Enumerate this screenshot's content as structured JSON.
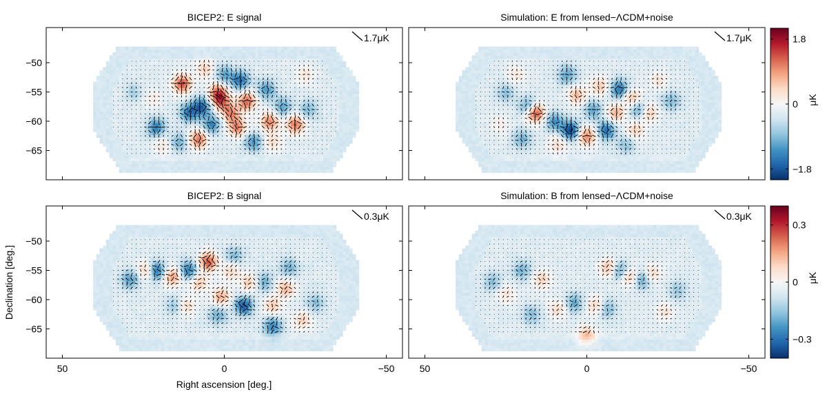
{
  "chart_data": {
    "type": "heatmap",
    "figure": {
      "xlabel": "Right ascension [deg.]",
      "ylabel": "Declination [deg.]"
    },
    "x_axis": {
      "range": [
        55,
        -55
      ],
      "ticks": [
        50,
        0,
        -50
      ],
      "tick_labels": [
        "50",
        "0",
        "−50"
      ]
    },
    "y_axis": {
      "range": [
        -70,
        -44
      ],
      "ticks": [
        -50,
        -55,
        -60,
        -65
      ],
      "tick_labels": [
        "−50",
        "−55",
        "−60",
        "−65"
      ]
    },
    "panels": [
      {
        "title": "BICEP2: E signal",
        "polarization_mode": "E",
        "scale_reference": "1.7μK",
        "hotspots": [
          {
            "ra": 13,
            "dec": -53.5,
            "amp": 1.6
          },
          {
            "ra": 6,
            "dec": -51.0,
            "amp": 0.7
          },
          {
            "ra": 2,
            "dec": -55.0,
            "amp": 1.4
          },
          {
            "ra": 1,
            "dec": -56.5,
            "amp": 1.3
          },
          {
            "ra": -7,
            "dec": -56.5,
            "amp": 1.5
          },
          {
            "ra": -2,
            "dec": -58.5,
            "amp": 1.2
          },
          {
            "ra": -4,
            "dec": -61.0,
            "amp": 1.3
          },
          {
            "ra": -14,
            "dec": -60.0,
            "amp": 1.3
          },
          {
            "ra": -22,
            "dec": -60.5,
            "amp": 1.4
          },
          {
            "ra": 8,
            "dec": -63.0,
            "amp": 1.4
          },
          {
            "ra": -15,
            "dec": -63.5,
            "amp": 0.6
          },
          {
            "ra": 19,
            "dec": -64.0,
            "amp": 0.5
          },
          {
            "ra": 22,
            "dec": -56.0,
            "amp": 0.4
          },
          {
            "ra": -25,
            "dec": -52.0,
            "amp": 0.5
          },
          {
            "ra": 7,
            "dec": -57.5,
            "amp": -1.5
          },
          {
            "ra": -5,
            "dec": -53.0,
            "amp": -1.3
          },
          {
            "ra": 4,
            "dec": -60.5,
            "amp": -1.1
          },
          {
            "ra": 11,
            "dec": -58.5,
            "amp": -1.2
          },
          {
            "ra": -13,
            "dec": -54.5,
            "amp": -1.0
          },
          {
            "ra": -18,
            "dec": -57.5,
            "amp": -0.9
          },
          {
            "ra": 21,
            "dec": -61.0,
            "amp": -1.2
          },
          {
            "ra": -9,
            "dec": -63.5,
            "amp": -1.0
          },
          {
            "ra": 14,
            "dec": -63.5,
            "amp": -0.8
          },
          {
            "ra": 0,
            "dec": -52.0,
            "amp": -0.9
          },
          {
            "ra": -26,
            "dec": -58.0,
            "amp": -0.7
          },
          {
            "ra": 28,
            "dec": -55.0,
            "amp": -0.4
          }
        ]
      },
      {
        "title": "Simulation: E from lensed−ΛCDM+noise",
        "polarization_mode": "E",
        "scale_reference": "1.7μK",
        "hotspots": [
          {
            "ra": 16,
            "dec": -58.5,
            "amp": 1.9
          },
          {
            "ra": 0,
            "dec": -62.5,
            "amp": 1.3
          },
          {
            "ra": 3,
            "dec": -55.5,
            "amp": 0.9
          },
          {
            "ra": -9,
            "dec": -58.5,
            "amp": 1.0
          },
          {
            "ra": -4,
            "dec": -54.0,
            "amp": 0.8
          },
          {
            "ra": -14,
            "dec": -56.0,
            "amp": 0.9
          },
          {
            "ra": -19,
            "dec": -58.5,
            "amp": 0.9
          },
          {
            "ra": -15,
            "dec": -61.5,
            "amp": 0.7
          },
          {
            "ra": 22,
            "dec": -52.0,
            "amp": 0.5
          },
          {
            "ra": 9,
            "dec": -64.0,
            "amp": 0.6
          },
          {
            "ra": -22,
            "dec": -53.0,
            "amp": 0.5
          },
          {
            "ra": 27,
            "dec": -60.5,
            "amp": 0.4
          },
          {
            "ra": 5,
            "dec": -61.5,
            "amp": -1.7
          },
          {
            "ra": -10,
            "dec": -54.5,
            "amp": -1.3
          },
          {
            "ra": -6,
            "dec": -61.5,
            "amp": -1.3
          },
          {
            "ra": 18,
            "dec": -57.5,
            "amp": -1.1
          },
          {
            "ra": -16,
            "dec": -58.0,
            "amp": -1.0
          },
          {
            "ra": 10,
            "dec": -60.0,
            "amp": -1.0
          },
          {
            "ra": 6,
            "dec": -52.0,
            "amp": -0.9
          },
          {
            "ra": 20,
            "dec": -63.0,
            "amp": -0.8
          },
          {
            "ra": -2,
            "dec": -58.0,
            "amp": -0.9
          },
          {
            "ra": -26,
            "dec": -56.5,
            "amp": -0.7
          },
          {
            "ra": 25,
            "dec": -55.0,
            "amp": -0.6
          },
          {
            "ra": -12,
            "dec": -64.0,
            "amp": -0.6
          }
        ]
      },
      {
        "title": "BICEP2: B signal",
        "polarization_mode": "B",
        "scale_reference": "0.3μK",
        "hotspots": [
          {
            "ra": 5,
            "dec": -53.5,
            "amp": 0.3
          },
          {
            "ra": 16,
            "dec": -56.0,
            "amp": 0.22
          },
          {
            "ra": 1,
            "dec": -59.5,
            "amp": 0.2
          },
          {
            "ra": 24,
            "dec": -55.0,
            "amp": 0.18
          },
          {
            "ra": -8,
            "dec": -57.0,
            "amp": 0.16
          },
          {
            "ra": -19,
            "dec": -58.0,
            "amp": 0.18
          },
          {
            "ra": -15,
            "dec": -61.0,
            "amp": 0.15
          },
          {
            "ra": 12,
            "dec": -61.0,
            "amp": 0.14
          },
          {
            "ra": -24,
            "dec": -63.5,
            "amp": 0.14
          },
          {
            "ra": 8,
            "dec": -57.0,
            "amp": 0.16
          },
          {
            "ra": -2,
            "dec": -55.0,
            "amp": 0.13
          },
          {
            "ra": 21,
            "dec": -55.0,
            "amp": -0.28
          },
          {
            "ra": 11,
            "dec": -55.0,
            "amp": -0.24
          },
          {
            "ra": -6,
            "dec": -61.0,
            "amp": -0.29
          },
          {
            "ra": -15,
            "dec": -64.5,
            "amp": -0.22
          },
          {
            "ra": 29,
            "dec": -56.5,
            "amp": -0.18
          },
          {
            "ra": -12,
            "dec": -57.0,
            "amp": -0.16
          },
          {
            "ra": 2,
            "dec": -62.5,
            "amp": -0.15
          },
          {
            "ra": -20,
            "dec": -54.5,
            "amp": -0.14
          },
          {
            "ra": 15,
            "dec": -61.0,
            "amp": -0.12
          },
          {
            "ra": -28,
            "dec": -60.5,
            "amp": -0.12
          },
          {
            "ra": -3,
            "dec": -52.5,
            "amp": -0.13
          }
        ]
      },
      {
        "title": "Simulation: B from lensed−ΛCDM+noise",
        "polarization_mode": "B",
        "scale_reference": "0.3μK",
        "hotspots": [
          {
            "ra": -7,
            "dec": -54.5,
            "amp": 0.2
          },
          {
            "ra": -13,
            "dec": -56.0,
            "amp": 0.18
          },
          {
            "ra": 14,
            "dec": -56.5,
            "amp": 0.14
          },
          {
            "ra": -3,
            "dec": -61.0,
            "amp": 0.15
          },
          {
            "ra": 0,
            "dec": -66.0,
            "amp": 0.18
          },
          {
            "ra": -20,
            "dec": -55.5,
            "amp": 0.13
          },
          {
            "ra": 9,
            "dec": -61.5,
            "amp": 0.12
          },
          {
            "ra": 25,
            "dec": -59.0,
            "amp": 0.1
          },
          {
            "ra": -24,
            "dec": -62.0,
            "amp": 0.1
          },
          {
            "ra": -10,
            "dec": -55.0,
            "amp": -0.22
          },
          {
            "ra": -17,
            "dec": -56.5,
            "amp": -0.18
          },
          {
            "ra": 20,
            "dec": -55.0,
            "amp": -0.14
          },
          {
            "ra": 4,
            "dec": -60.5,
            "amp": -0.16
          },
          {
            "ra": -6,
            "dec": -61.5,
            "amp": -0.15
          },
          {
            "ra": 17,
            "dec": -62.5,
            "amp": -0.12
          },
          {
            "ra": 29,
            "dec": -57.0,
            "amp": -0.12
          },
          {
            "ra": -28,
            "dec": -58.5,
            "amp": -0.1
          }
        ]
      }
    ],
    "colorbars": [
      {
        "rows": "E",
        "range": [
          -2.1,
          2.1
        ],
        "ticks": [
          1.8,
          0,
          -1.8
        ],
        "tick_labels": [
          "1.8",
          "0",
          "−1.8"
        ],
        "unit_label": "μK"
      },
      {
        "rows": "B",
        "range": [
          -0.4,
          0.4
        ],
        "ticks": [
          0.3,
          0,
          -0.3
        ],
        "tick_labels": [
          "0.3",
          "0",
          "−0.3"
        ],
        "unit_label": "μK"
      }
    ],
    "colormap": [
      "#08306b",
      "#2166ac",
      "#4393c3",
      "#92c5de",
      "#d1e5f0",
      "#f7f7f7",
      "#fddbc7",
      "#f4a582",
      "#d6604d",
      "#b2182b",
      "#67001f"
    ]
  }
}
